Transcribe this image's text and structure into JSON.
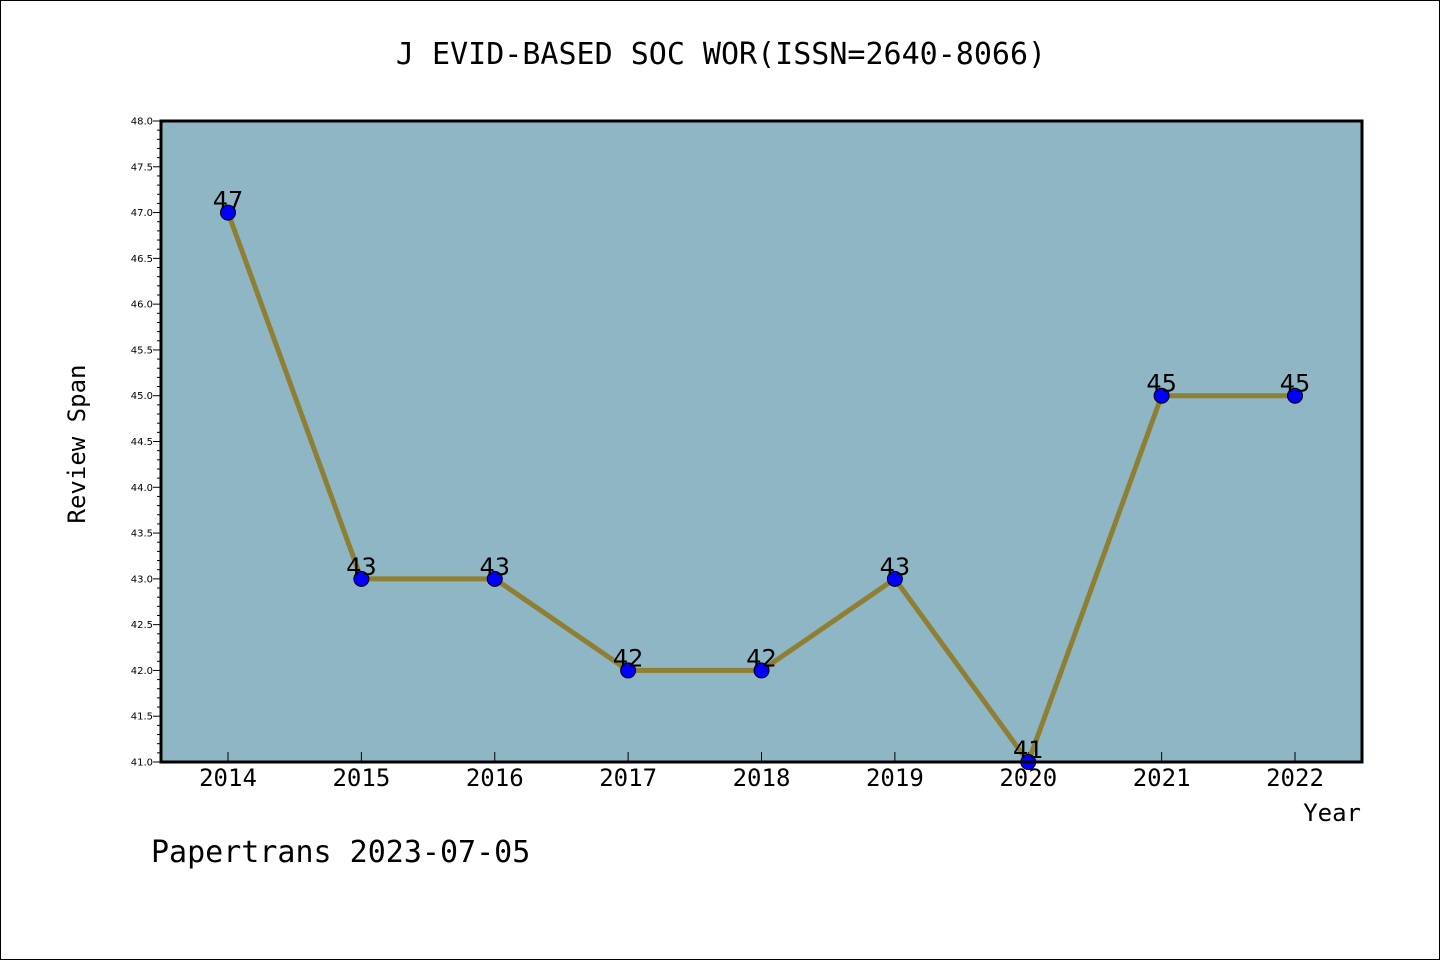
{
  "footer": "Papertrans 2023-07-05",
  "colors": {
    "plot_background": "#8fb6c5",
    "line": "#8f7f32",
    "marker": "#0000ff"
  },
  "chart_data": {
    "type": "line",
    "title": "J EVID-BASED SOC WOR(ISSN=2640-8066)",
    "xlabel": "Year",
    "ylabel": "Review Span",
    "x": [
      "2014",
      "2015",
      "2016",
      "2017",
      "2018",
      "2019",
      "2020",
      "2021",
      "2022"
    ],
    "series": [
      {
        "values": [
          47,
          43,
          43,
          42,
          42,
          43,
          41,
          45,
          45
        ],
        "data_labels": [
          "47",
          "43",
          "43",
          "42",
          "42",
          "43",
          "41",
          "45",
          "45"
        ]
      }
    ],
    "ylim": [
      41.0,
      48.0
    ],
    "yticks": [
      "41.0",
      "41.5",
      "42.0",
      "42.5",
      "43.0",
      "43.5",
      "44.0",
      "44.5",
      "45.0",
      "45.5",
      "46.0",
      "46.5",
      "47.0",
      "47.5",
      "48.0"
    ],
    "grid": false,
    "legend": "none"
  }
}
